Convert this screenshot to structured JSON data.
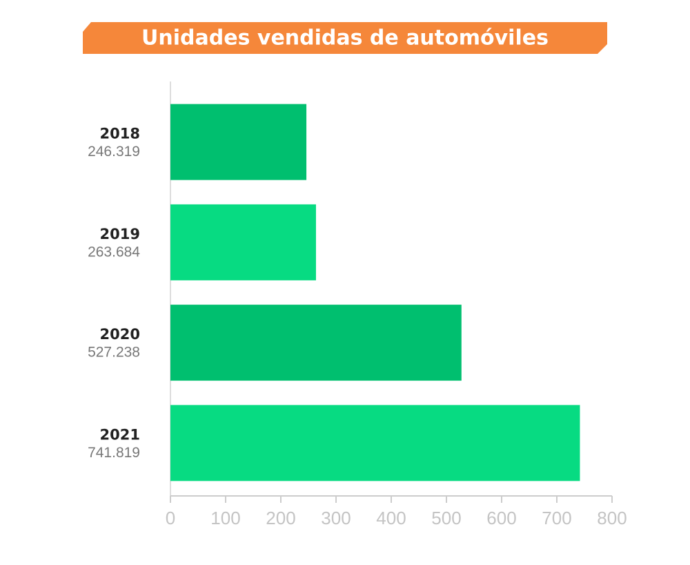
{
  "chart_data": {
    "type": "bar",
    "orientation": "horizontal",
    "title": "Unidades vendidas de automóviles",
    "categories": [
      "2018",
      "2019",
      "2020",
      "2021"
    ],
    "values": [
      246.319,
      263.684,
      527.238,
      741.819
    ],
    "colors": [
      "#00bf6f",
      "#07db82",
      "#00bf6f",
      "#07db82"
    ],
    "xlim": [
      0,
      800
    ],
    "xticks": [
      0,
      100,
      200,
      300,
      400,
      500,
      600,
      700,
      800
    ],
    "grid": false
  }
}
